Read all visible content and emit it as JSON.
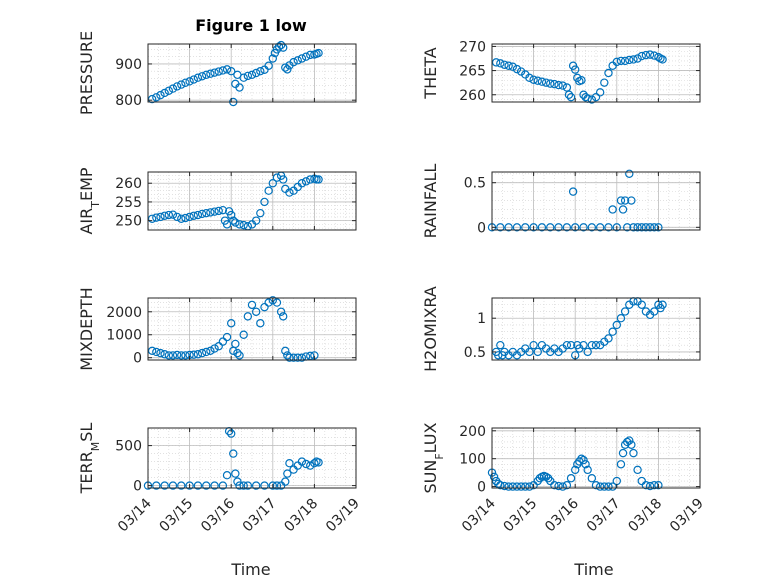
{
  "figure": {
    "title": "Figure 1 low",
    "xlabel": "Time",
    "x_tick_labels": [
      "03/14",
      "03/15",
      "03/16",
      "03/17",
      "03/18",
      "03/19"
    ],
    "marker_color": "#0072bd",
    "grid": true
  },
  "chart_data": [
    {
      "type": "scatter",
      "ylabel": "PRESSURE",
      "ylim": [
        795,
        955
      ],
      "yticks": [
        800,
        900
      ],
      "x_units": "days since 03/14",
      "x": [
        0.1,
        0.2,
        0.3,
        0.4,
        0.5,
        0.6,
        0.7,
        0.8,
        0.9,
        1.0,
        1.1,
        1.2,
        1.3,
        1.4,
        1.5,
        1.6,
        1.7,
        1.8,
        1.9,
        2.0,
        2.05,
        2.1,
        2.15,
        2.2,
        2.3,
        2.4,
        2.5,
        2.6,
        2.7,
        2.8,
        2.9,
        3.0,
        3.05,
        3.1,
        3.15,
        3.2,
        3.25,
        3.3,
        3.35,
        3.4,
        3.5,
        3.6,
        3.7,
        3.8,
        3.9,
        4.0,
        4.05,
        4.1
      ],
      "y": [
        803,
        808,
        814,
        820,
        826,
        832,
        838,
        843,
        848,
        852,
        857,
        862,
        866,
        870,
        873,
        876,
        879,
        882,
        885,
        880,
        795,
        845,
        870,
        835,
        862,
        867,
        870,
        875,
        880,
        884,
        895,
        915,
        930,
        940,
        948,
        952,
        945,
        890,
        885,
        896,
        905,
        910,
        915,
        920,
        925,
        926,
        928,
        930
      ]
    },
    {
      "type": "scatter",
      "ylabel": "THETA",
      "ylim": [
        258.5,
        270.5
      ],
      "yticks": [
        260,
        265,
        270
      ],
      "x_units": "days since 03/14",
      "x": [
        0.1,
        0.2,
        0.3,
        0.4,
        0.5,
        0.6,
        0.7,
        0.8,
        0.9,
        1.0,
        1.1,
        1.2,
        1.3,
        1.4,
        1.5,
        1.6,
        1.7,
        1.8,
        1.85,
        1.9,
        1.95,
        2.0,
        2.05,
        2.1,
        2.15,
        2.2,
        2.25,
        2.3,
        2.4,
        2.5,
        2.6,
        2.7,
        2.8,
        2.9,
        3.0,
        3.1,
        3.2,
        3.3,
        3.4,
        3.5,
        3.6,
        3.7,
        3.8,
        3.9,
        4.0,
        4.05,
        4.1
      ],
      "y": [
        266.7,
        266.5,
        266.2,
        266.0,
        265.8,
        265.3,
        264.8,
        264.2,
        263.5,
        263.1,
        262.9,
        262.7,
        262.5,
        262.3,
        262.2,
        262.0,
        261.9,
        261.5,
        260.0,
        259.5,
        266.0,
        265.2,
        263.5,
        262.8,
        263.0,
        260.0,
        259.5,
        259.2,
        259.0,
        259.5,
        260.5,
        262.5,
        264.5,
        266.0,
        266.8,
        267.0,
        267.0,
        267.2,
        267.3,
        267.5,
        268.0,
        268.2,
        268.3,
        268.1,
        267.8,
        267.5,
        267.3
      ]
    },
    {
      "type": "scatter",
      "ylabel": "AIR_TEMP",
      "ylim": [
        247.5,
        263
      ],
      "yticks": [
        250,
        255,
        260
      ],
      "x_units": "days since 03/14",
      "x": [
        0.1,
        0.2,
        0.3,
        0.4,
        0.5,
        0.6,
        0.7,
        0.8,
        0.9,
        1.0,
        1.1,
        1.2,
        1.3,
        1.4,
        1.5,
        1.6,
        1.7,
        1.8,
        1.85,
        1.9,
        1.95,
        2.0,
        2.05,
        2.1,
        2.2,
        2.3,
        2.4,
        2.5,
        2.6,
        2.7,
        2.8,
        2.9,
        3.0,
        3.1,
        3.2,
        3.25,
        3.3,
        3.4,
        3.5,
        3.6,
        3.7,
        3.8,
        3.9,
        4.0,
        4.05,
        4.1
      ],
      "y": [
        250.5,
        250.8,
        251.0,
        251.3,
        251.5,
        251.6,
        251.0,
        250.5,
        250.7,
        251.0,
        251.3,
        251.5,
        251.8,
        252.0,
        252.2,
        252.4,
        252.6,
        252.8,
        250.0,
        249.0,
        252.5,
        251.5,
        250.0,
        249.5,
        249.0,
        248.8,
        248.5,
        249.0,
        250.0,
        252.0,
        255.0,
        258.0,
        260.0,
        261.5,
        262.0,
        261.0,
        258.5,
        257.5,
        258.0,
        259.0,
        260.0,
        260.5,
        261.0,
        261.2,
        261.0,
        261.0
      ]
    },
    {
      "type": "scatter",
      "ylabel": "RAINFALL",
      "ylim": [
        -0.03,
        0.62
      ],
      "yticks": [
        0,
        0.5
      ],
      "x_units": "days since 03/14",
      "x": [
        0.0,
        0.2,
        0.4,
        0.6,
        0.8,
        1.0,
        1.2,
        1.4,
        1.6,
        1.8,
        1.95,
        2.0,
        2.2,
        2.4,
        2.6,
        2.8,
        2.9,
        3.0,
        3.1,
        3.15,
        3.2,
        3.25,
        3.3,
        3.35,
        3.4,
        3.5,
        3.6,
        3.7,
        3.8,
        3.9,
        4.0
      ],
      "y": [
        0,
        0,
        0,
        0,
        0,
        0,
        0,
        0,
        0,
        0,
        0.4,
        0,
        0,
        0,
        0,
        0,
        0.2,
        0,
        0.3,
        0.2,
        0.3,
        0,
        0.6,
        0.3,
        0,
        0,
        0,
        0,
        0,
        0,
        0
      ]
    },
    {
      "type": "scatter",
      "ylabel": "MIXDEPTH",
      "ylim": [
        -100,
        2600
      ],
      "yticks": [
        0,
        1000,
        2000
      ],
      "x_units": "days since 03/14",
      "x": [
        0.1,
        0.2,
        0.3,
        0.4,
        0.5,
        0.6,
        0.7,
        0.8,
        0.9,
        1.0,
        1.1,
        1.2,
        1.3,
        1.4,
        1.5,
        1.6,
        1.7,
        1.8,
        1.9,
        2.0,
        2.05,
        2.1,
        2.15,
        2.2,
        2.3,
        2.4,
        2.5,
        2.6,
        2.7,
        2.8,
        2.9,
        3.0,
        3.1,
        3.2,
        3.25,
        3.3,
        3.35,
        3.4,
        3.5,
        3.6,
        3.7,
        3.8,
        3.9,
        4.0
      ],
      "y": [
        300,
        250,
        200,
        150,
        100,
        100,
        120,
        100,
        100,
        120,
        130,
        150,
        200,
        250,
        300,
        400,
        500,
        700,
        900,
        1500,
        300,
        600,
        200,
        100,
        1000,
        1800,
        2300,
        2000,
        1500,
        2200,
        2400,
        2500,
        2400,
        2000,
        1800,
        300,
        100,
        0,
        0,
        0,
        0,
        50,
        80,
        100
      ]
    },
    {
      "type": "scatter",
      "ylabel": "H2OMIXRA",
      "ylim": [
        0.38,
        1.3
      ],
      "yticks": [
        0.5,
        1
      ],
      "x_units": "days since 03/14",
      "x": [
        0.1,
        0.15,
        0.2,
        0.25,
        0.3,
        0.4,
        0.5,
        0.6,
        0.7,
        0.8,
        0.9,
        1.0,
        1.1,
        1.2,
        1.3,
        1.4,
        1.5,
        1.6,
        1.7,
        1.8,
        1.9,
        2.0,
        2.05,
        2.1,
        2.2,
        2.3,
        2.4,
        2.5,
        2.6,
        2.7,
        2.8,
        2.9,
        3.0,
        3.1,
        3.2,
        3.3,
        3.4,
        3.5,
        3.6,
        3.7,
        3.8,
        3.9,
        4.0,
        4.05,
        4.1
      ],
      "y": [
        0.5,
        0.45,
        0.6,
        0.45,
        0.5,
        0.45,
        0.5,
        0.45,
        0.5,
        0.55,
        0.5,
        0.6,
        0.5,
        0.6,
        0.55,
        0.5,
        0.55,
        0.5,
        0.55,
        0.6,
        0.6,
        0.45,
        0.6,
        0.55,
        0.6,
        0.5,
        0.6,
        0.6,
        0.6,
        0.65,
        0.7,
        0.8,
        0.9,
        1.0,
        1.1,
        1.2,
        1.25,
        1.25,
        1.2,
        1.1,
        1.05,
        1.1,
        1.2,
        1.15,
        1.2
      ]
    },
    {
      "type": "scatter",
      "ylabel": "TERR_MSL",
      "ylim": [
        -30,
        720
      ],
      "yticks": [
        0,
        500
      ],
      "x_units": "days since 03/14",
      "x": [
        0.0,
        0.2,
        0.4,
        0.6,
        0.8,
        1.0,
        1.2,
        1.4,
        1.6,
        1.8,
        1.9,
        1.95,
        2.0,
        2.05,
        2.1,
        2.15,
        2.2,
        2.3,
        2.4,
        2.6,
        2.8,
        3.0,
        3.1,
        3.2,
        3.3,
        3.35,
        3.4,
        3.5,
        3.6,
        3.7,
        3.8,
        3.9,
        4.0,
        4.05,
        4.1
      ],
      "y": [
        0,
        0,
        0,
        0,
        0,
        0,
        0,
        0,
        0,
        0,
        130,
        680,
        650,
        400,
        150,
        50,
        0,
        0,
        0,
        0,
        0,
        0,
        0,
        0,
        50,
        150,
        280,
        200,
        250,
        300,
        270,
        250,
        280,
        300,
        290
      ]
    },
    {
      "type": "scatter",
      "ylabel": "SUN_FLUX",
      "ylim": [
        -5,
        210
      ],
      "yticks": [
        0,
        100,
        200
      ],
      "x_units": "days since 03/14",
      "x": [
        0.0,
        0.05,
        0.1,
        0.15,
        0.2,
        0.3,
        0.4,
        0.5,
        0.6,
        0.7,
        0.8,
        0.9,
        1.0,
        1.1,
        1.15,
        1.2,
        1.25,
        1.3,
        1.35,
        1.4,
        1.5,
        1.6,
        1.7,
        1.8,
        1.9,
        2.0,
        2.05,
        2.1,
        2.15,
        2.2,
        2.25,
        2.3,
        2.4,
        2.5,
        2.6,
        2.7,
        2.8,
        2.9,
        3.0,
        3.1,
        3.15,
        3.2,
        3.25,
        3.3,
        3.35,
        3.4,
        3.5,
        3.6,
        3.7,
        3.8,
        3.9,
        4.0
      ],
      "y": [
        50,
        35,
        20,
        10,
        5,
        2,
        0,
        0,
        0,
        0,
        0,
        0,
        5,
        20,
        30,
        35,
        38,
        35,
        30,
        20,
        5,
        2,
        0,
        5,
        30,
        60,
        80,
        90,
        100,
        95,
        80,
        60,
        30,
        5,
        0,
        0,
        0,
        0,
        20,
        80,
        120,
        150,
        160,
        165,
        150,
        120,
        60,
        20,
        5,
        2,
        5,
        5
      ]
    }
  ]
}
